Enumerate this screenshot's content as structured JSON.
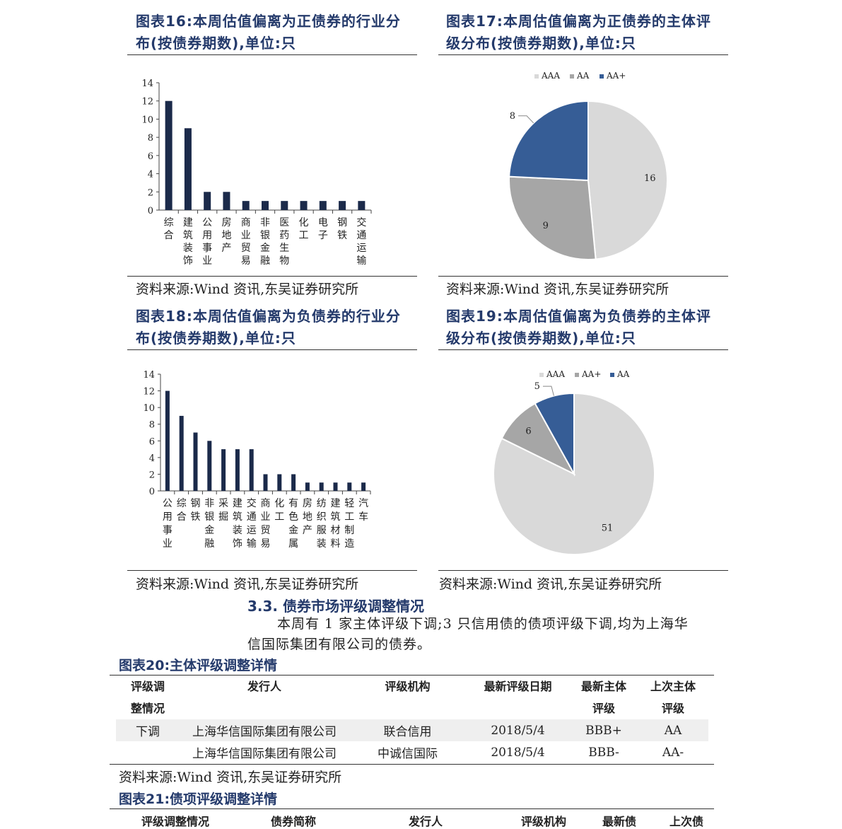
{
  "figures": {
    "fig16": {
      "title_line1": "图表16:本周估值偏离为正债券的行业分",
      "title_line2": "布(按债券期数),单位:只",
      "source": "资料来源:Wind 资讯,东吴证券研究所"
    },
    "fig17": {
      "title_line1": "图表17:本周估值偏离为正债券的主体评",
      "title_line2": "级分布(按债券期数),单位:只",
      "source": "资料来源:Wind 资讯,东吴证券研究所"
    },
    "fig18": {
      "title_line1": "图表18:本周估值偏离为负债券的行业分",
      "title_line2": "布(按债券期数),单位:只",
      "source": "资料来源:Wind 资讯,东吴证券研究所"
    },
    "fig19": {
      "title_line1": "图表19:本周估值偏离为负债券的主体评",
      "title_line2": "级分布(按债券期数),单位:只",
      "source": "资料来源:Wind 资讯,东吴证券研究所"
    }
  },
  "chart_data": [
    {
      "type": "bar",
      "categories": [
        "综合",
        "建筑装饰",
        "公用事业",
        "房地产",
        "商业贸易",
        "非银金融",
        "医药生物",
        "化工",
        "电子",
        "钢铁",
        "交通运输"
      ],
      "values": [
        12,
        9,
        2,
        2,
        1,
        1,
        1,
        1,
        1,
        1,
        1
      ],
      "ylim": [
        0,
        14
      ],
      "yticks": [
        0,
        2,
        4,
        6,
        8,
        10,
        12,
        14
      ],
      "color": "#1b2a4a",
      "grid": false
    },
    {
      "type": "pie",
      "labels": [
        "AAA",
        "AA",
        "AA+"
      ],
      "values": [
        16,
        9,
        8
      ],
      "colors": [
        "#d9d9d9",
        "#a6a6a6",
        "#365d96"
      ],
      "legend": "top"
    },
    {
      "type": "bar",
      "categories": [
        "公用事业",
        "综合",
        "钢铁",
        "非银金融",
        "采掘",
        "建筑装饰",
        "交通运输",
        "商业贸易",
        "化工",
        "有色金属",
        "房地产",
        "纺织服装",
        "建筑材料",
        "轻工制造",
        "汽车"
      ],
      "values": [
        12,
        9,
        7,
        6,
        5,
        5,
        5,
        2,
        2,
        2,
        1,
        1,
        1,
        1,
        1
      ],
      "ylim": [
        0,
        14
      ],
      "yticks": [
        0,
        2,
        4,
        6,
        8,
        10,
        12,
        14
      ],
      "color": "#1b2a4a",
      "grid": false
    },
    {
      "type": "pie",
      "labels": [
        "AAA",
        "AA+",
        "AA"
      ],
      "values": [
        51,
        6,
        5
      ],
      "colors": [
        "#d9d9d9",
        "#a6a6a6",
        "#365d96"
      ],
      "legend": "top"
    }
  ],
  "section": {
    "heading": "3.3. 债券市场评级调整情况",
    "paragraph_line1": "本周有 1 家主体评级下调;3 只信用债的债项评级下调,均为上海华",
    "paragraph_line2": "信国际集团有限公司的债券。"
  },
  "table20": {
    "title": "图表20:主体评级调整详情",
    "headers": {
      "adjust_line1": "评级调",
      "adjust_line2": "整情况",
      "issuer": "发行人",
      "agency": "评级机构",
      "date": "最新评级日期",
      "latest_line1": "最新主体",
      "latest_line2": "评级",
      "previous_line1": "上次主体",
      "previous_line2": "评级"
    },
    "rows": [
      {
        "adjust": "下调",
        "issuer": "上海华信国际集团有限公司",
        "agency": "联合信用",
        "date": "2018/5/4",
        "latest": "BBB+",
        "previous": "AA"
      },
      {
        "adjust": "",
        "issuer": "上海华信国际集团有限公司",
        "agency": "中诚信国际",
        "date": "2018/5/4",
        "latest": "BBB-",
        "previous": "AA-"
      }
    ],
    "source": "资料来源:Wind 资讯,东吴证券研究所"
  },
  "table21": {
    "title": "图表21:债项评级调整详情",
    "headers": [
      "评级调整情况",
      "债券简称",
      "发行人",
      "评级机构",
      "最新债",
      "上次债"
    ]
  }
}
